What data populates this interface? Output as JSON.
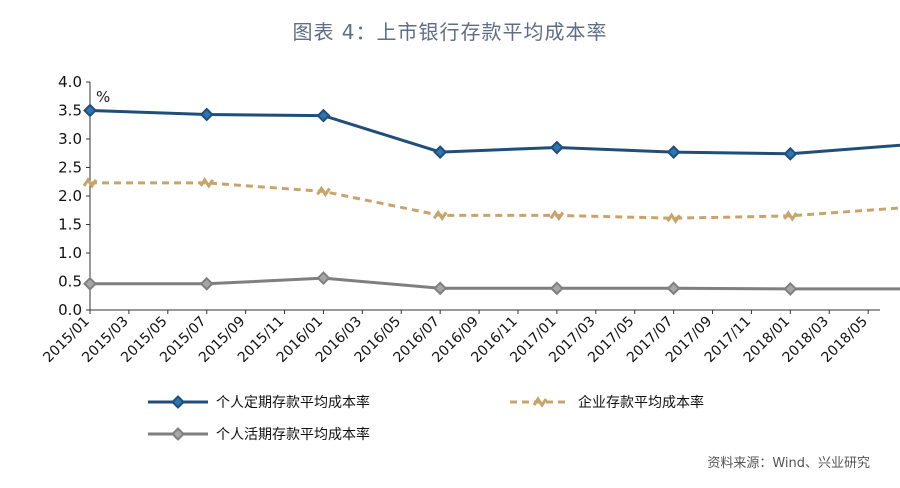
{
  "title": "图表 4：上市银行存款平均成本率",
  "unit": "%",
  "source": "资料来源：Wind、兴业研究",
  "chart_data": {
    "type": "line",
    "x": [
      "2015/01",
      "2015/03",
      "2015/05",
      "2015/07",
      "2015/09",
      "2015/11",
      "2016/01",
      "2016/03",
      "2016/05",
      "2016/07",
      "2016/09",
      "2016/11",
      "2017/01",
      "2017/03",
      "2017/05",
      "2017/07",
      "2017/09",
      "2017/11",
      "2018/01",
      "2018/03",
      "2018/05"
    ],
    "ylim": [
      0,
      4.0
    ],
    "yticks": [
      "0.0",
      "0.5",
      "1.0",
      "1.5",
      "2.0",
      "2.5",
      "3.0",
      "3.5",
      "4.0"
    ],
    "legend_position": "bottom",
    "series": [
      {
        "name": "个人定期存款平均成本率",
        "color": "#1f4e79",
        "style": "solid",
        "marker": "diamond",
        "points": [
          [
            0,
            3.5
          ],
          [
            3,
            3.43
          ],
          [
            6,
            3.41
          ],
          [
            9,
            2.77
          ],
          [
            12,
            2.85
          ],
          [
            15,
            2.77
          ],
          [
            18,
            2.74
          ],
          [
            21,
            2.9
          ]
        ]
      },
      {
        "name": "企业存款平均成本率",
        "color": "#c9a46a",
        "style": "dashed",
        "marker": "tilde",
        "points": [
          [
            0,
            2.23
          ],
          [
            3,
            2.23
          ],
          [
            6,
            2.08
          ],
          [
            9,
            1.66
          ],
          [
            12,
            1.66
          ],
          [
            15,
            1.61
          ],
          [
            18,
            1.65
          ],
          [
            21,
            1.8
          ]
        ]
      },
      {
        "name": "个人活期存款平均成本率",
        "color": "#7f7f7f",
        "style": "solid",
        "marker": "diamond",
        "points": [
          [
            0,
            0.46
          ],
          [
            3,
            0.46
          ],
          [
            6,
            0.56
          ],
          [
            9,
            0.38
          ],
          [
            12,
            0.38
          ],
          [
            15,
            0.38
          ],
          [
            18,
            0.37
          ],
          [
            21,
            0.37
          ]
        ]
      }
    ]
  }
}
